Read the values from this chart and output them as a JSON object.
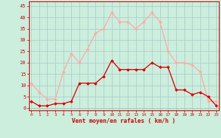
{
  "hours": [
    0,
    1,
    2,
    3,
    4,
    5,
    6,
    7,
    8,
    9,
    10,
    11,
    12,
    13,
    14,
    15,
    16,
    17,
    18,
    19,
    20,
    21,
    22,
    23
  ],
  "wind_mean": [
    3,
    1,
    1,
    2,
    2,
    3,
    11,
    11,
    11,
    14,
    21,
    17,
    17,
    17,
    17,
    20,
    18,
    18,
    8,
    8,
    6,
    7,
    5,
    1
  ],
  "wind_gust": [
    11,
    7,
    4,
    4,
    16,
    24,
    20,
    26,
    33,
    35,
    42,
    38,
    38,
    35,
    38,
    42,
    38,
    25,
    20,
    20,
    19,
    16,
    3,
    3
  ],
  "mean_color": "#dd0000",
  "gust_color": "#ffaaaa",
  "bg_color": "#cceedd",
  "grid_color": "#aacccc",
  "xlabel": "Vent moyen/en rafales ( km/h )",
  "xlabel_color": "#cc0000",
  "ytick_labels": [
    "0",
    "5",
    "10",
    "15",
    "20",
    "25",
    "30",
    "35",
    "40",
    "45"
  ],
  "ytick_vals": [
    0,
    5,
    10,
    15,
    20,
    25,
    30,
    35,
    40,
    45
  ],
  "ylim": [
    -1,
    47
  ],
  "xlim": [
    -0.3,
    23.3
  ],
  "tick_color": "#cc0000",
  "spine_color": "#cc0000",
  "mean_marker": "D",
  "gust_marker": "D",
  "linewidth": 1.0,
  "markersize": 2.0
}
